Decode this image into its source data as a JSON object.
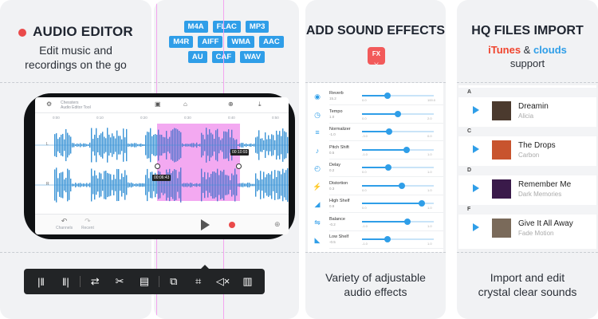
{
  "card1": {
    "title": "AUDIO EDITOR",
    "subtitle_line1": "Edit music and",
    "subtitle_line2": "recordings on the go"
  },
  "card2": {
    "formats": [
      [
        "M4A",
        "FLAC",
        "MP3"
      ],
      [
        "M4R",
        "AIFF",
        "WMA",
        "AAC"
      ],
      [
        "AU",
        "CAF",
        "WAV"
      ]
    ]
  },
  "editor": {
    "project_name": "Chessters",
    "project_sub": "Audio Editor Tool",
    "ruler_marks": [
      "0:00",
      "0:10",
      "0:20",
      "0:30",
      "0:40",
      "0:50"
    ],
    "channel_left": "L",
    "channel_right": "R",
    "time_start": "00:06:43",
    "time_end": "00:10:93",
    "transport_labels": [
      "Channels",
      "Recent"
    ],
    "highlight_color": "#f2a4f0",
    "wave_color": "#3a93d6"
  },
  "toolbar": {
    "tools": [
      "split-start-icon",
      "split-end-icon",
      "loop-icon",
      "scissors-icon",
      "paste-icon",
      "copy-icon",
      "crop-icon",
      "mute-icon",
      "trash-icon"
    ]
  },
  "card3": {
    "title": "ADD SOUND EFFECTS",
    "fx_badge": "FX",
    "effects": [
      {
        "name": "Reverb",
        "value": "15.2",
        "min": "0.0",
        "max": "100.0",
        "level": 0.35
      },
      {
        "name": "Tempo",
        "value": "1.0",
        "min": "0.0",
        "max": "2.0",
        "level": 0.5
      },
      {
        "name": "Normalizer",
        "value": "-1.0",
        "min": "-3.0",
        "max": "0.0",
        "level": 0.38
      },
      {
        "name": "Pitch Shift",
        "value": "0.5",
        "min": "-1.0",
        "max": "1.0",
        "level": 0.62
      },
      {
        "name": "Delay",
        "value": "0.2",
        "min": "0.0",
        "max": "1.0",
        "level": 0.37
      },
      {
        "name": "Distortion",
        "value": "0.3",
        "min": "0.0",
        "max": "1.0",
        "level": 0.55
      },
      {
        "name": "High Shelf",
        "value": "0.9",
        "min": "0.0",
        "max": "1.0",
        "level": 0.83
      },
      {
        "name": "Balance",
        "value": "-0.2",
        "min": "-1.0",
        "max": "1.0",
        "level": 0.63
      },
      {
        "name": "Low Shelf",
        "value": "-0.5",
        "min": "-1.0",
        "max": "1.0",
        "level": 0.35
      }
    ],
    "caption_line1": "Variety of adjustable",
    "caption_line2": "audio effects"
  },
  "card4": {
    "title": "HQ FILES IMPORT",
    "sub_itunes": "iTunes",
    "sub_and": " & ",
    "sub_clouds": "clouds",
    "sub_line2": "support",
    "library": [
      {
        "section": "A",
        "title": "Dreamin",
        "artist": "Alicia",
        "art_color": "#4b3a2e"
      },
      {
        "section": "C",
        "title": "The Drops",
        "artist": "Carbon",
        "art_color": "#c8542e"
      },
      {
        "section": "D",
        "title": "Remember Me",
        "artist": "Dark Memories",
        "art_color": "#3a1a4a"
      },
      {
        "section": "F",
        "title": "Give It All Away",
        "artist": "Fade Motion",
        "art_color": "#7a6a5a"
      }
    ],
    "caption_line1": "Import and edit",
    "caption_line2": "crystal clear sounds"
  }
}
